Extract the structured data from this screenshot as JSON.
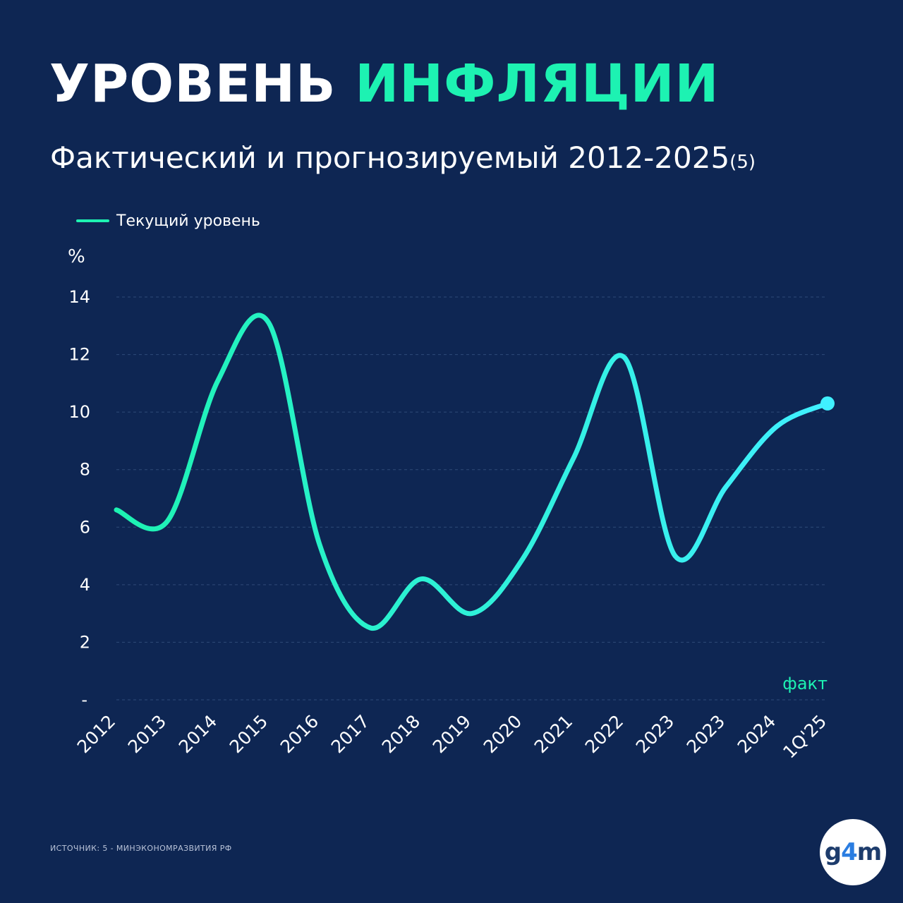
{
  "header": {
    "title_part1": "УРОВЕНЬ",
    "title_part2": "ИНФЛЯЦИИ",
    "subtitle": "Фактический и прогнозируемый 2012-2025",
    "subtitle_note": "(5)"
  },
  "colors": {
    "background": "#0e2653",
    "accent": "#1df2b2",
    "line_start": "#1df2b2",
    "line_end": "#40f0ff",
    "grid": "#2e4a78",
    "text": "#ffffff"
  },
  "chart_data": {
    "type": "line",
    "title": "",
    "xlabel": "",
    "ylabel": "%",
    "ylim": [
      0,
      14
    ],
    "yticks": [
      {
        "value": 0,
        "label": "-"
      },
      {
        "value": 2,
        "label": "2"
      },
      {
        "value": 4,
        "label": "4"
      },
      {
        "value": 6,
        "label": "6"
      },
      {
        "value": 8,
        "label": "8"
      },
      {
        "value": 10,
        "label": "10"
      },
      {
        "value": 12,
        "label": "12"
      },
      {
        "value": 14,
        "label": "14"
      }
    ],
    "grid": true,
    "legend_position": "top-left",
    "categories": [
      "2012",
      "2013",
      "2014",
      "2015",
      "2016",
      "2017",
      "2018",
      "2019",
      "2020",
      "2021",
      "2022",
      "2023",
      "2023",
      "2024",
      "1Q'25"
    ],
    "series": [
      {
        "name": "Текущий уровень",
        "values": [
          6.6,
          6.2,
          11.1,
          13.1,
          5.4,
          2.5,
          4.2,
          3.0,
          4.9,
          8.4,
          11.9,
          5.0,
          7.4,
          9.5,
          10.3
        ]
      }
    ],
    "annotation": "факт"
  },
  "footer": {
    "source": "ИСТОЧНИК: 5 - МИНЭКОНОМРАЗВИТИЯ РФ",
    "logo_part1": "g",
    "logo_part2": "4",
    "logo_part3": "m"
  }
}
